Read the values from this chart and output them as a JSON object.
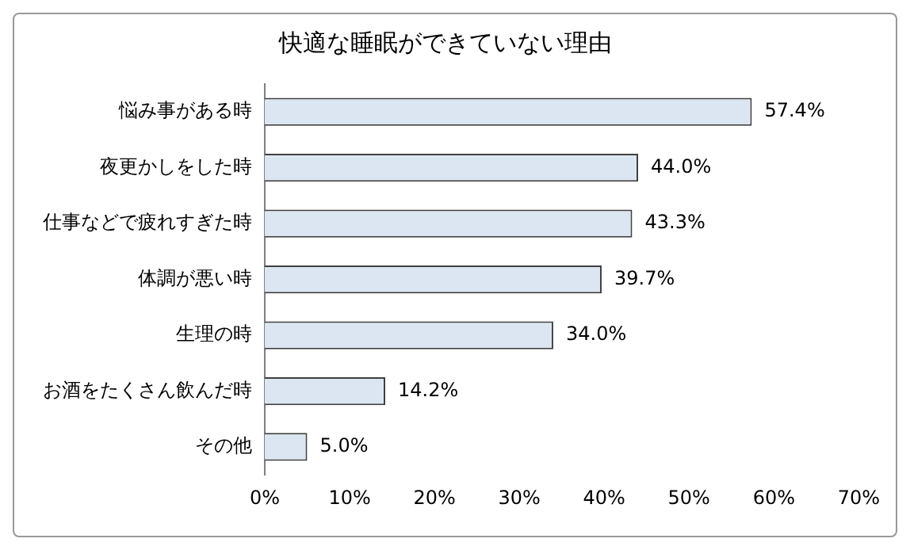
{
  "chart_data": {
    "type": "bar",
    "orientation": "horizontal",
    "title": "快適な睡眠ができていない理由",
    "categories": [
      "悩み事がある時",
      "夜更かしをした時",
      "仕事などで疲れすぎた時",
      "体調が悪い時",
      "生理の時",
      "お酒をたくさん飲んだ時",
      "その他"
    ],
    "values": [
      57.4,
      44.0,
      43.3,
      39.7,
      34.0,
      14.2,
      5.0
    ],
    "value_labels": [
      "57.4%",
      "44.0%",
      "43.3%",
      "39.7%",
      "34.0%",
      "14.2%",
      "5.0%"
    ],
    "color": "#dce6f2",
    "xlim": [
      0,
      70
    ],
    "xticks": [
      {
        "value": 0,
        "label": "0%"
      },
      {
        "value": 10,
        "label": "10%"
      },
      {
        "value": 20,
        "label": "20%"
      },
      {
        "value": 30,
        "label": "30%"
      },
      {
        "value": 40,
        "label": "40%"
      },
      {
        "value": 50,
        "label": "50%"
      },
      {
        "value": 60,
        "label": "60%"
      },
      {
        "value": 70,
        "label": "70%"
      }
    ],
    "grid": false,
    "legend": false
  }
}
